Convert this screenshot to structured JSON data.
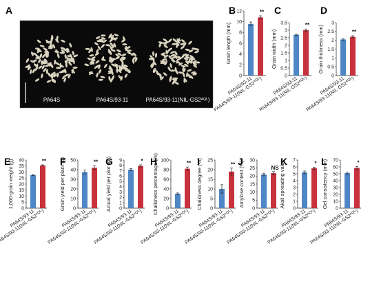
{
  "photo": {
    "letter": "A",
    "labels": [
      "PA64S",
      "PA64S/93-11",
      "PA64S/93-11(NIL-GS2"
    ],
    "label_superscript": "AQL",
    "label_suffix": ")"
  },
  "colors": {
    "bar_blue": "#4f86c6",
    "bar_red": "#c8323c",
    "photo_bg": "#0a0a0a",
    "grain": "#d8d2be"
  },
  "categories_short": [
    "PA64S/93-11",
    "PA64S/93-11(NIL-GS2"
  ],
  "category_superscript": "AQL",
  "category_suffix": ")",
  "chart_data": [
    {
      "letter": "B",
      "type": "bar",
      "ylabel": "Grain length (mm)",
      "ylim": [
        0,
        12
      ],
      "ticks": [
        0,
        2,
        4,
        6,
        8,
        10,
        12
      ],
      "categories": [
        "PA64S/93-11",
        "PA64S/93-11(NIL-GS2AQL)"
      ],
      "values": [
        9.6,
        10.8
      ],
      "errors": [
        0.35,
        0.3
      ],
      "sig": "**"
    },
    {
      "letter": "C",
      "type": "bar",
      "ylabel": "Grain width (mm)",
      "ylim": [
        0,
        3.5
      ],
      "ticks": [
        0,
        0.5,
        1,
        1.5,
        2,
        2.5,
        3,
        3.5
      ],
      "categories": [
        "PA64S/93-11",
        "PA64S/93-11(NIL-GS2AQL)"
      ],
      "values": [
        2.7,
        3.0
      ],
      "errors": [
        0.05,
        0.08
      ],
      "sig": "**"
    },
    {
      "letter": "D",
      "type": "bar",
      "ylabel": "Grain thickness (mm)",
      "ylim": [
        0,
        3
      ],
      "ticks": [
        0,
        0.5,
        1,
        1.5,
        2,
        2.5,
        3
      ],
      "categories": [
        "PA64S/93-11",
        "PA64S/93-11(NIL-GS2AQL)"
      ],
      "values": [
        2.05,
        2.2
      ],
      "errors": [
        0.05,
        0.06
      ],
      "sig": "**"
    },
    {
      "letter": "E",
      "type": "bar",
      "ylabel": "1,000-grain weight (g)",
      "ylim": [
        0,
        40
      ],
      "ticks": [
        0,
        5,
        10,
        15,
        20,
        25,
        30,
        35,
        40
      ],
      "categories": [
        "PA64S/93-11",
        "PA64S/93-11(NIL-GS2AQL)"
      ],
      "values": [
        27.5,
        35.5
      ],
      "errors": [
        0.5,
        0.5
      ],
      "sig": "**"
    },
    {
      "letter": "F",
      "type": "bar",
      "ylabel": "Grain yield per plant (g)",
      "ylim": [
        0,
        50
      ],
      "ticks": [
        0,
        10,
        20,
        30,
        40,
        50
      ],
      "categories": [
        "PA64S/93-11",
        "PA64S/93-11(NIL-GS2AQL)"
      ],
      "values": [
        37.5,
        42
      ],
      "errors": [
        2.2,
        2.0
      ],
      "sig": "**"
    },
    {
      "letter": "G",
      "type": "bar",
      "ylabel": "Actual yield per plot (kg)",
      "ylim": [
        0,
        9
      ],
      "ticks": [
        0,
        1,
        2,
        3,
        4,
        5,
        6,
        7,
        8,
        9
      ],
      "categories": [
        "PA64S/93-11",
        "PA64S/93-11(NIL-GS2AQL)"
      ],
      "values": [
        7.2,
        7.9
      ],
      "errors": [
        0.2,
        0.2
      ],
      "sig": "*"
    },
    {
      "letter": "H",
      "type": "bar",
      "ylabel": "Chalkiness percentage (%)",
      "ylim": [
        0,
        100
      ],
      "ticks": [
        0,
        20,
        40,
        60,
        80,
        100
      ],
      "categories": [
        "PA64S/93-11",
        "PA64S/93-11(NIL-GS2AQL)"
      ],
      "values": [
        30,
        82
      ],
      "errors": [
        1.5,
        3.5
      ],
      "sig": "**"
    },
    {
      "letter": "I",
      "type": "bar",
      "ylabel": "Chalkiness degree (%)",
      "ylim": [
        0,
        25
      ],
      "ticks": [
        0,
        5,
        10,
        15,
        20,
        25
      ],
      "categories": [
        "PA64S/93-11",
        "PA64S/93-11(NIL-GS2AQL)"
      ],
      "values": [
        10,
        19
      ],
      "errors": [
        2.2,
        1.8
      ],
      "sig": "**"
    },
    {
      "letter": "J",
      "type": "bar",
      "ylabel": "Amylose content (%)",
      "ylim": [
        0,
        30
      ],
      "ticks": [
        0,
        5,
        10,
        15,
        20,
        25,
        30
      ],
      "categories": [
        "PA64S/93-11",
        "PA64S/93-11(NIL-GS2AQL)"
      ],
      "values": [
        21,
        21.8
      ],
      "errors": [
        0.8,
        1.0
      ],
      "sig": "NS"
    },
    {
      "letter": "K",
      "type": "bar",
      "ylabel": "Akali spreading value",
      "ylim": [
        0,
        7
      ],
      "ticks": [
        0,
        1,
        2,
        3,
        4,
        5,
        6,
        7
      ],
      "categories": [
        "PA64S/93-11",
        "PA64S/93-11(NIL-GS2AQL)"
      ],
      "values": [
        5.2,
        5.8
      ],
      "errors": [
        0.2,
        0.15
      ],
      "sig": "*"
    },
    {
      "letter": "L",
      "type": "bar",
      "ylabel": "Gel consistency (mm)",
      "ylim": [
        0,
        70
      ],
      "ticks": [
        0,
        10,
        20,
        30,
        40,
        50,
        60,
        70
      ],
      "categories": [
        "PA64S/93-11",
        "PA64S/93-11(NIL-GS2AQL)"
      ],
      "values": [
        51,
        58.5
      ],
      "errors": [
        1.5,
        2.0
      ],
      "sig": "*"
    }
  ]
}
